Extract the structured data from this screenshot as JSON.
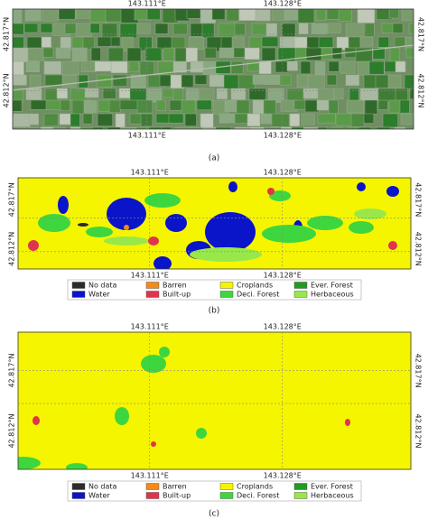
{
  "panels": [
    {
      "label": "(a)",
      "lon_labels": [
        "143.111°E",
        "143.128°E"
      ],
      "lat_labels": [
        "42.817°N",
        "42.812°N"
      ]
    },
    {
      "label": "(b)",
      "lon_labels": [
        "143.111°E",
        "143.128°E"
      ],
      "lat_labels": [
        "42.817°N",
        "42.812°N"
      ]
    },
    {
      "label": "(c)",
      "lon_labels": [
        "143.111°E",
        "143.128°E"
      ],
      "lat_labels": [
        "42.817°N",
        "42.812°N"
      ]
    }
  ],
  "legend": [
    {
      "name": "No data",
      "color": "#2b2b2b"
    },
    {
      "name": "Water",
      "color": "#0a14c8"
    },
    {
      "name": "Barren",
      "color": "#f28a1e"
    },
    {
      "name": "Built-up",
      "color": "#e0344e"
    },
    {
      "name": "Croplands",
      "color": "#f5f500"
    },
    {
      "name": "Deci. Forest",
      "color": "#3ed63e"
    },
    {
      "name": "Ever. Forest",
      "color": "#239a23"
    },
    {
      "name": "Herbaceous",
      "color": "#98e84a"
    }
  ]
}
